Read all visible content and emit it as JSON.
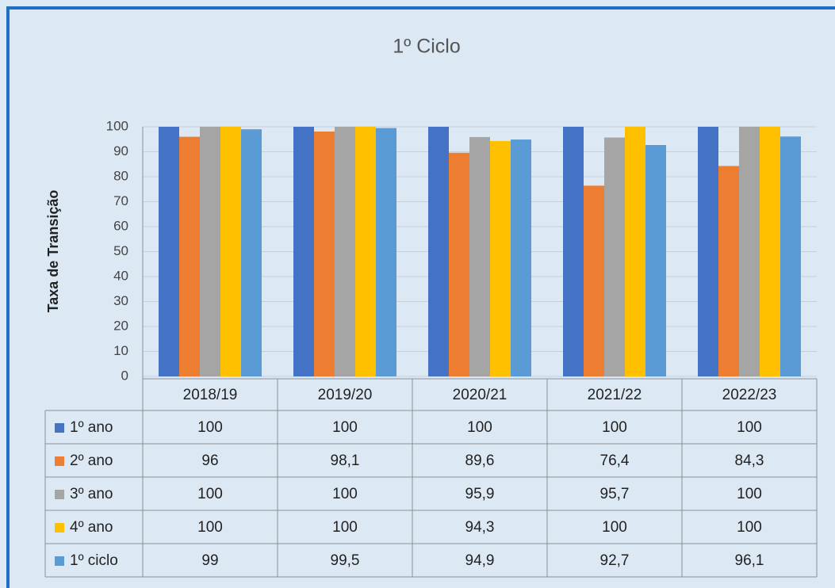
{
  "chart_data": {
    "type": "bar",
    "title": "1º Ciclo",
    "y_label": "Taxa de Transição",
    "categories": [
      "2018/19",
      "2019/20",
      "2020/21",
      "2021/22",
      "2022/23"
    ],
    "series": [
      {
        "name": "1º ano",
        "color": "#4472c4",
        "values": [
          100,
          100,
          100,
          100,
          100
        ],
        "value_labels": [
          "100",
          "100",
          "100",
          "100",
          "100"
        ]
      },
      {
        "name": "2º ano",
        "color": "#ed7d31",
        "values": [
          96,
          98.1,
          89.6,
          76.4,
          84.3
        ],
        "value_labels": [
          "96",
          "98,1",
          "89,6",
          "76,4",
          "84,3"
        ]
      },
      {
        "name": "3º ano",
        "color": "#a5a5a5",
        "values": [
          100,
          100,
          95.9,
          95.7,
          100
        ],
        "value_labels": [
          "100",
          "100",
          "95,9",
          "95,7",
          "100"
        ]
      },
      {
        "name": "4º ano",
        "color": "#ffc000",
        "values": [
          100,
          100,
          94.3,
          100,
          100
        ],
        "value_labels": [
          "100",
          "100",
          "94,3",
          "100",
          "100"
        ]
      },
      {
        "name": "1º ciclo",
        "color": "#5b9bd5",
        "values": [
          99,
          99.5,
          94.9,
          92.7,
          96.1
        ],
        "value_labels": [
          "99",
          "99,5",
          "94,9",
          "92,7",
          "96,1"
        ]
      }
    ],
    "ylim": [
      0,
      100
    ],
    "yticks": [
      0,
      10,
      20,
      30,
      40,
      50,
      60,
      70,
      80,
      90,
      100
    ],
    "grid": true
  }
}
